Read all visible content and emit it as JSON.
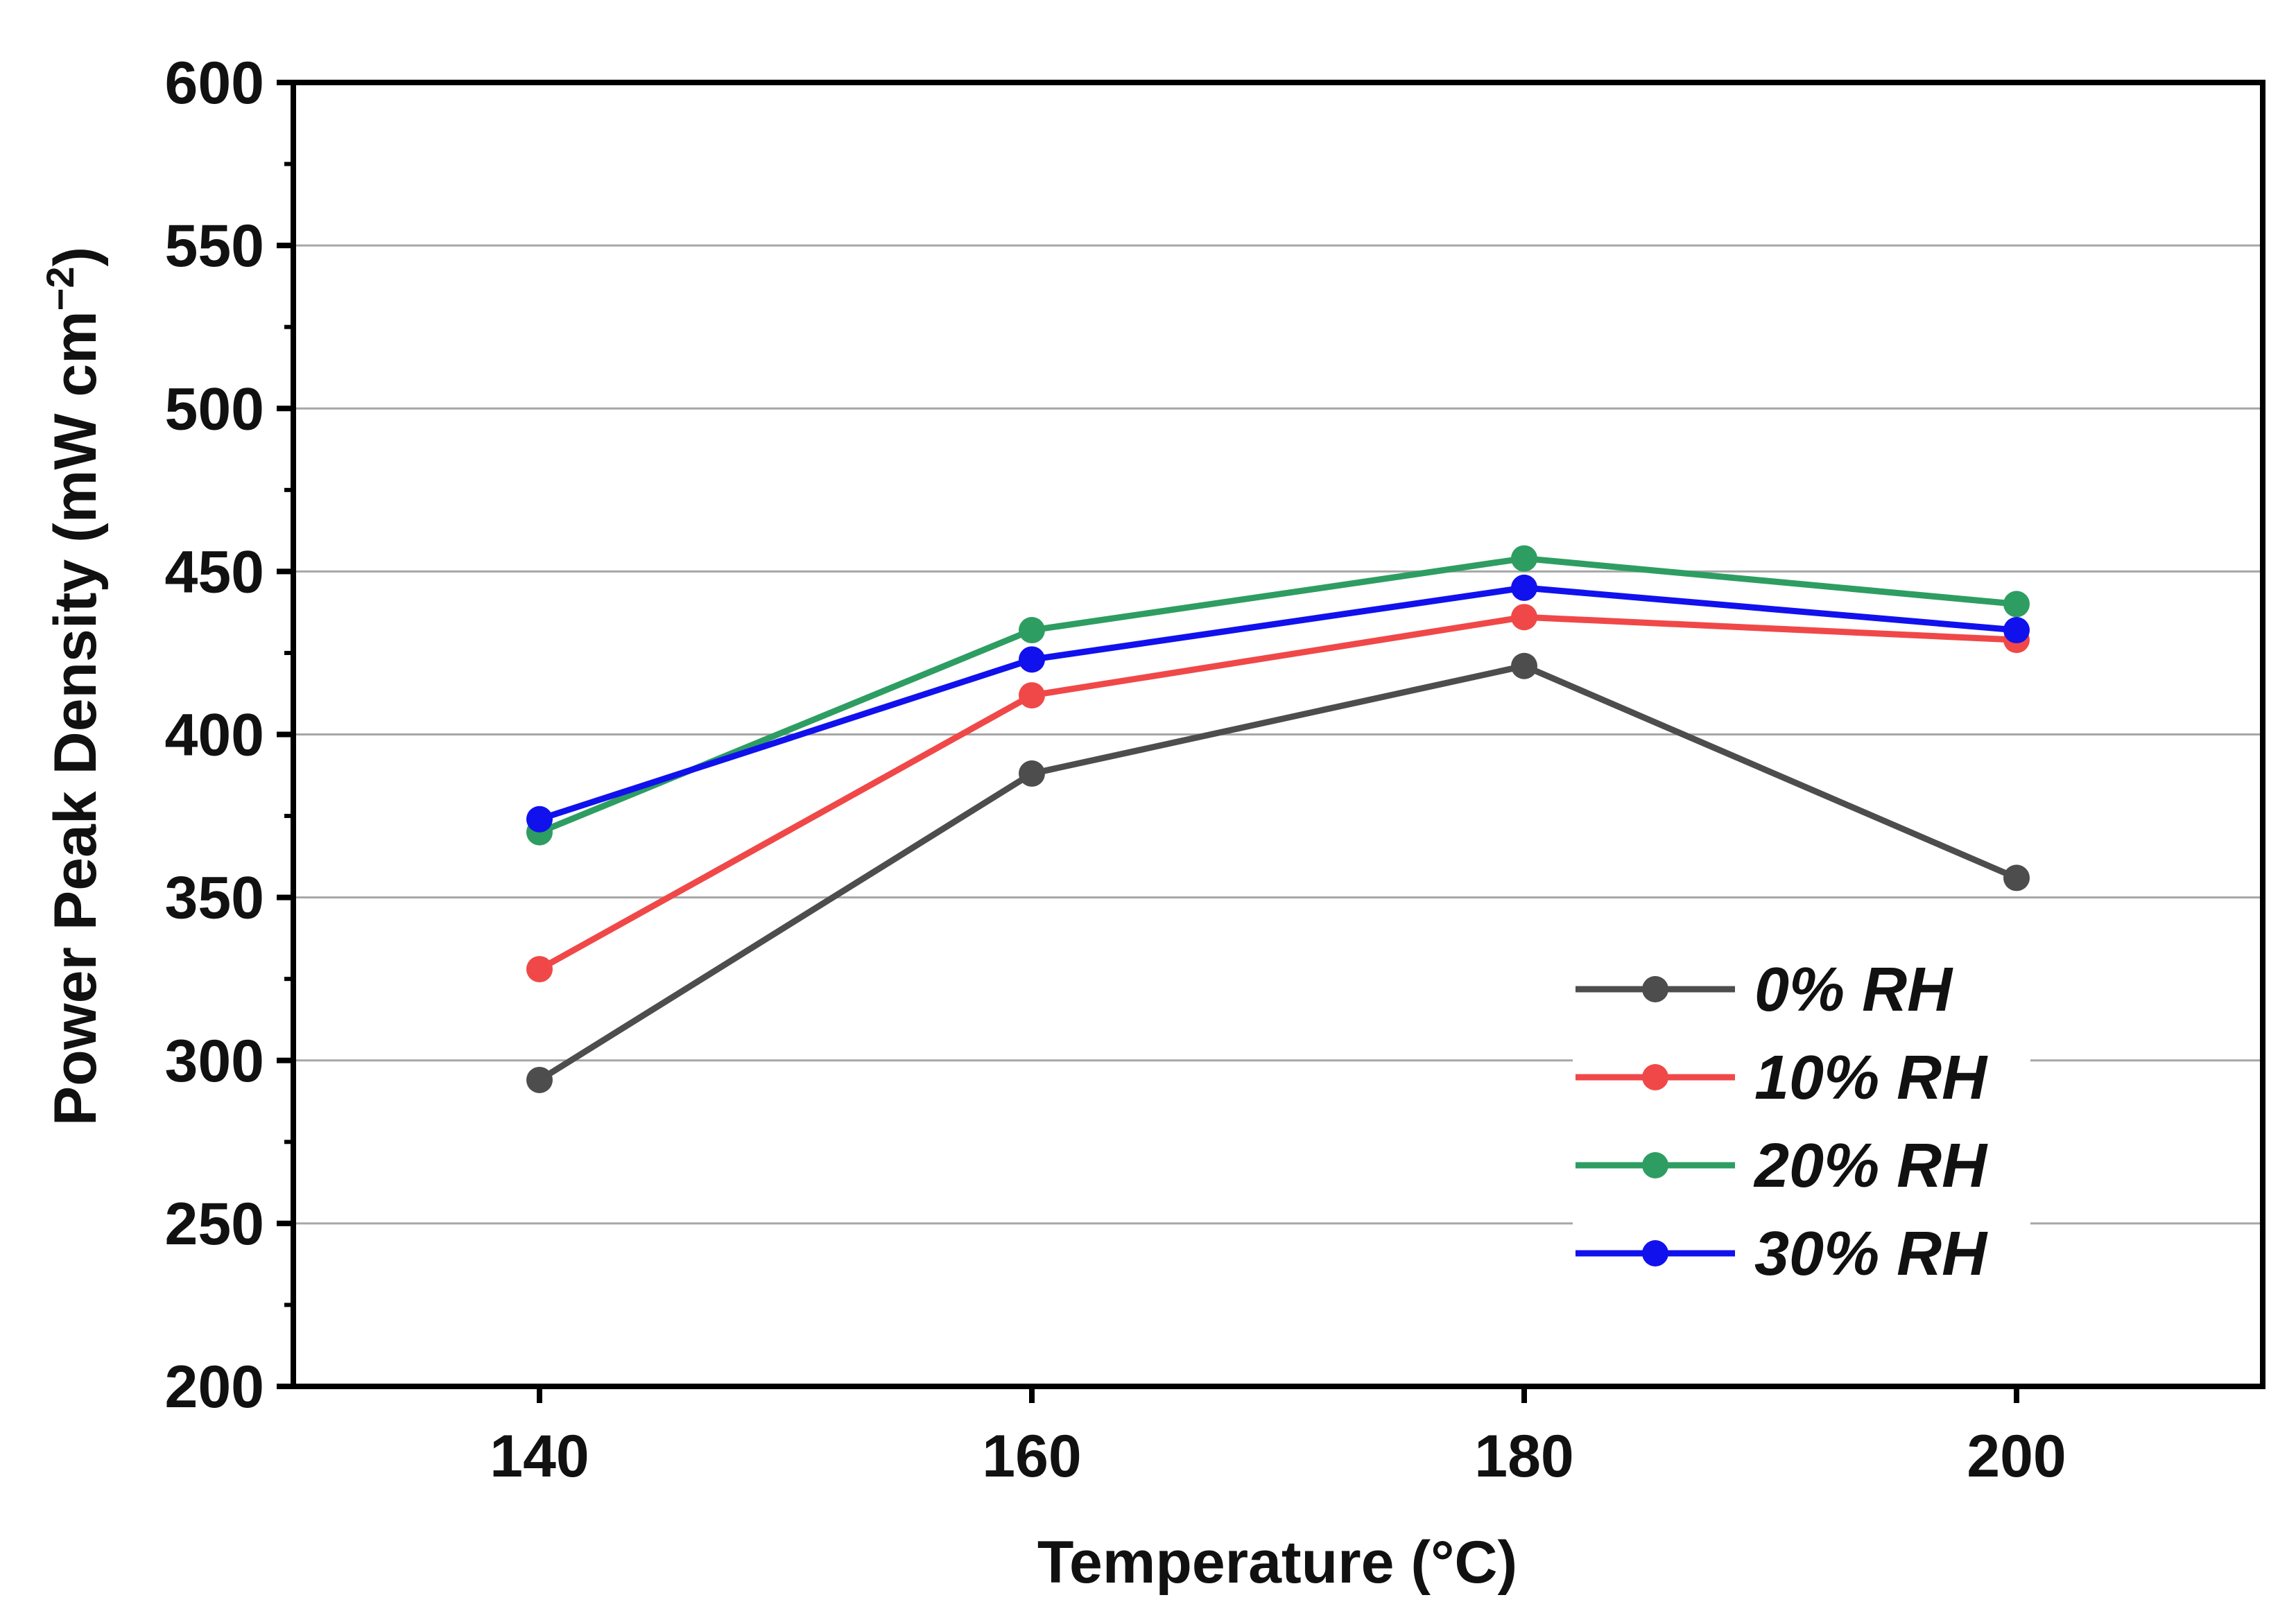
{
  "chart_data": {
    "type": "line",
    "title": "",
    "xlabel": "Temperature (°C)",
    "ylabel": "Power Peak Density (mW cm",
    "ylabel_superscript": "−2",
    "ylabel_close": ")",
    "x": [
      140,
      160,
      180,
      200
    ],
    "x_ticks": [
      "140",
      "160",
      "180",
      "200"
    ],
    "xlim": [
      130,
      210
    ],
    "ylim": [
      200,
      600
    ],
    "y_ticks": [
      "200",
      "250",
      "300",
      "350",
      "400",
      "450",
      "500",
      "550",
      "600"
    ],
    "grid": "horizontal",
    "legend_position": "lower-right",
    "series": [
      {
        "name": "0% RH",
        "color": "#4d4d4d",
        "values": [
          294,
          388,
          421,
          356
        ]
      },
      {
        "name": "10% RH",
        "color": "#f04848",
        "values": [
          328,
          412,
          436,
          429
        ]
      },
      {
        "name": "20% RH",
        "color": "#2e9d62",
        "values": [
          370,
          432,
          454,
          440
        ]
      },
      {
        "name": "30% RH",
        "color": "#1111ee",
        "values": [
          374,
          423,
          445,
          432
        ]
      }
    ]
  }
}
